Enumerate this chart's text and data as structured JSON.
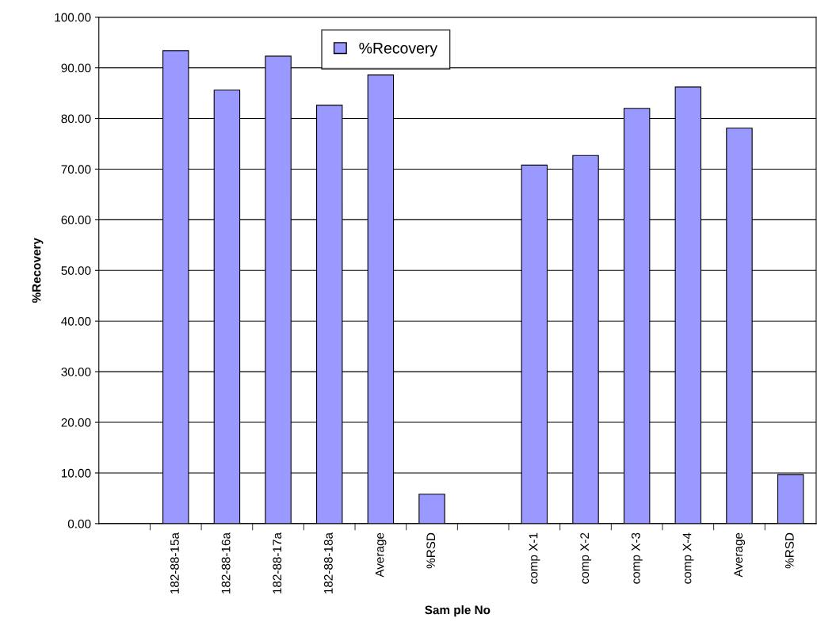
{
  "chart_data": {
    "type": "bar",
    "xlabel": "Sam ple No",
    "ylabel": "%Recovery",
    "categories": [
      null,
      "182-88-15a",
      "182-88-16a",
      "182-88-17a",
      "182-88-18a",
      "Average",
      "%RSD",
      null,
      "comp X-1",
      "comp X-2",
      "comp X-3",
      "comp X-4",
      "Average",
      "%RSD"
    ],
    "series": [
      {
        "name": "%Recovery",
        "color": "#9999ff",
        "values": [
          null,
          93.4,
          85.6,
          92.3,
          82.6,
          88.6,
          5.8,
          null,
          70.8,
          72.7,
          82.0,
          86.2,
          78.1,
          9.7
        ]
      }
    ],
    "ylim": [
      0,
      100
    ],
    "yticks": [
      {
        "value": 0,
        "label": "0.00"
      },
      {
        "value": 10,
        "label": "10.00"
      },
      {
        "value": 20,
        "label": "20.00"
      },
      {
        "value": 30,
        "label": "30.00"
      },
      {
        "value": 40,
        "label": "40.00"
      },
      {
        "value": 50,
        "label": "50.00"
      },
      {
        "value": 60,
        "label": "60.00"
      },
      {
        "value": 70,
        "label": "70.00"
      },
      {
        "value": 80,
        "label": "80.00"
      },
      {
        "value": 90,
        "label": "90.00"
      },
      {
        "value": 100,
        "label": "100.00"
      }
    ],
    "grid": "y",
    "legend": "top"
  }
}
